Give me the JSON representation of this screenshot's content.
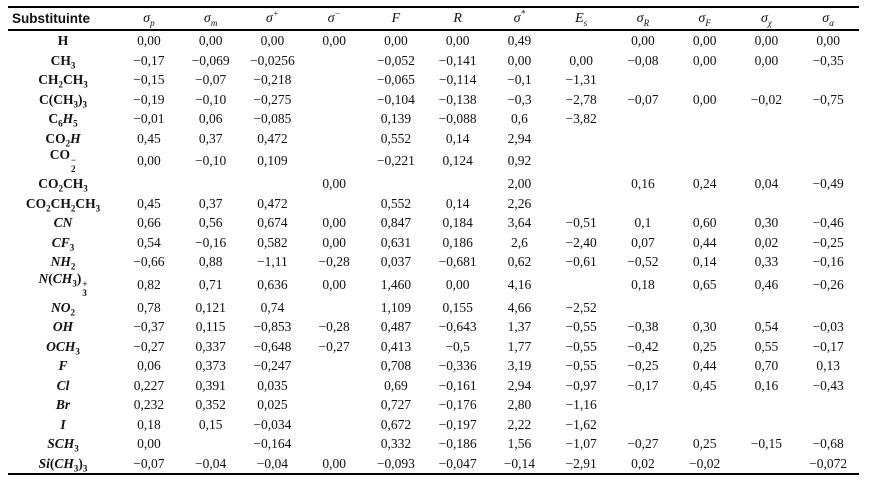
{
  "table": {
    "header": [
      {
        "key": "substituent",
        "runs": [
          {
            "t": "Substituinte"
          }
        ]
      },
      {
        "key": "sigma-p",
        "runs": [
          {
            "i": "σ"
          },
          {
            "sub": "p"
          }
        ]
      },
      {
        "key": "sigma-m",
        "runs": [
          {
            "i": "σ"
          },
          {
            "sub": "m"
          }
        ]
      },
      {
        "key": "sigma-plus",
        "runs": [
          {
            "i": "σ"
          },
          {
            "sup": "+"
          }
        ]
      },
      {
        "key": "sigma-minus",
        "runs": [
          {
            "i": "σ"
          },
          {
            "sup": "−"
          }
        ]
      },
      {
        "key": "F",
        "runs": [
          {
            "i": "F"
          }
        ]
      },
      {
        "key": "R",
        "runs": [
          {
            "i": "R"
          }
        ]
      },
      {
        "key": "sigma-star",
        "runs": [
          {
            "i": "σ"
          },
          {
            "sup": "*"
          }
        ]
      },
      {
        "key": "Es",
        "runs": [
          {
            "i": "E"
          },
          {
            "sub": "s"
          }
        ]
      },
      {
        "key": "sigma-R",
        "runs": [
          {
            "i": "σ"
          },
          {
            "sub": "R"
          }
        ]
      },
      {
        "key": "sigma-F",
        "runs": [
          {
            "i": "σ"
          },
          {
            "sub": "F"
          }
        ]
      },
      {
        "key": "sigma-chi",
        "runs": [
          {
            "i": "σ"
          },
          {
            "sub": "χ"
          }
        ]
      },
      {
        "key": "sigma-alpha",
        "runs": [
          {
            "i": "σ"
          },
          {
            "sub": "α"
          }
        ]
      }
    ],
    "rows": [
      {
        "label": [
          {
            "t": "H"
          }
        ],
        "values": [
          "0,00",
          "0,00",
          "0,00",
          "0,00",
          "0,00",
          "0,00",
          "0,49",
          "",
          "0,00",
          "0,00",
          "0,00",
          "0,00"
        ]
      },
      {
        "label": [
          {
            "t": "CH"
          },
          {
            "sub": "3"
          }
        ],
        "values": [
          "−0,17",
          "−0,069",
          "−0,0256",
          "",
          "−0,052",
          "−0,141",
          "0,00",
          "0,00",
          "−0,08",
          "0,00",
          "0,00",
          "−0,35"
        ]
      },
      {
        "label": [
          {
            "t": "CH"
          },
          {
            "sub": "2"
          },
          {
            "t": "CH"
          },
          {
            "sub": "3"
          }
        ],
        "values": [
          "−0,15",
          "−0,07",
          "−0,218",
          "",
          "−0,065",
          "−0,114",
          "−0,1",
          "−1,31",
          "",
          "",
          "",
          ""
        ]
      },
      {
        "label": [
          {
            "t": "C(CH"
          },
          {
            "sub": "3"
          },
          {
            "t": ")"
          },
          {
            "sub": "3"
          }
        ],
        "values": [
          "−0,19",
          "−0,10",
          "−0,275",
          "",
          "−0,104",
          "−0,138",
          "−0,3",
          "−2,78",
          "−0,07",
          "0,00",
          "−0,02",
          "−0,75"
        ]
      },
      {
        "label": [
          {
            "t": "C"
          },
          {
            "sub": "6"
          },
          {
            "i": "H"
          },
          {
            "sub": "5"
          }
        ],
        "values": [
          "−0,01",
          "0,06",
          "−0,085",
          "",
          "0,139",
          "−0,088",
          "0,6",
          "−3,82",
          "",
          "",
          "",
          ""
        ]
      },
      {
        "label": [
          {
            "t": "CO"
          },
          {
            "sub": "2"
          },
          {
            "i": "H"
          }
        ],
        "values": [
          "0,45",
          "0,37",
          "0,472",
          "",
          "0,552",
          "0,14",
          "2,94",
          "",
          "",
          "",
          "",
          ""
        ]
      },
      {
        "label": [
          {
            "t": "CO"
          },
          {
            "stack": [
              "2",
              "−"
            ]
          }
        ],
        "values": [
          "0,00",
          "−0,10",
          "0,109",
          "",
          "−0,221",
          "0,124",
          "0,92",
          "",
          "",
          "",
          "",
          ""
        ]
      },
      {
        "label": [
          {
            "t": "CO"
          },
          {
            "sub": "2"
          },
          {
            "t": "CH"
          },
          {
            "sub": "3"
          }
        ],
        "values": [
          "",
          "",
          "",
          "0,00",
          "",
          "",
          "2,00",
          "",
          "0,16",
          "0,24",
          "0,04",
          "−0,49"
        ]
      },
      {
        "label": [
          {
            "t": "CO"
          },
          {
            "sub": "2"
          },
          {
            "t": "CH"
          },
          {
            "sub": "2"
          },
          {
            "t": "CH"
          },
          {
            "sub": "3"
          }
        ],
        "values": [
          "0,45",
          "0,37",
          "0,472",
          "",
          "0,552",
          "0,14",
          "2,26",
          "",
          "",
          "",
          "",
          ""
        ]
      },
      {
        "label": [
          {
            "i": "CN"
          }
        ],
        "values": [
          "0,66",
          "0,56",
          "0,674",
          "0,00",
          "0,847",
          "0,184",
          "3,64",
          "−0,51",
          "0,1",
          "0,60",
          "0,30",
          "−0,46"
        ]
      },
      {
        "label": [
          {
            "i": "CF"
          },
          {
            "sub": "3"
          }
        ],
        "values": [
          "0,54",
          "−0,16",
          "0,582",
          "0,00",
          "0,631",
          "0,186",
          "2,6",
          "−2,40",
          "0,07",
          "0,44",
          "0,02",
          "−0,25"
        ]
      },
      {
        "label": [
          {
            "i": "NH"
          },
          {
            "sub": "2"
          }
        ],
        "values": [
          "−0,66",
          "0,88",
          "−1,11",
          "−0,28",
          "0,037",
          "−0,681",
          "0,62",
          "−0,61",
          "−0,52",
          "0,14",
          "0,33",
          "−0,16"
        ]
      },
      {
        "label": [
          {
            "i": "N"
          },
          {
            "t": "("
          },
          {
            "i": "CH"
          },
          {
            "sub": "3"
          },
          {
            "t": ")"
          },
          {
            "stack": [
              "3",
              "+"
            ]
          }
        ],
        "values": [
          "0,82",
          "0,71",
          "0,636",
          "0,00",
          "1,460",
          "0,00",
          "4,16",
          "",
          "0,18",
          "0,65",
          "0,46",
          "−0,26"
        ]
      },
      {
        "label": [
          {
            "i": "NO"
          },
          {
            "sub": "2"
          }
        ],
        "values": [
          "0,78",
          "0,121",
          "0,74",
          "",
          "1,109",
          "0,155",
          "4,66",
          "−2,52",
          "",
          "",
          "",
          ""
        ]
      },
      {
        "label": [
          {
            "i": "OH"
          }
        ],
        "values": [
          "−0,37",
          "0,115",
          "−0,853",
          "−0,28",
          "0,487",
          "−0,643",
          "1,37",
          "−0,55",
          "−0,38",
          "0,30",
          "0,54",
          "−0,03"
        ]
      },
      {
        "label": [
          {
            "i": "OCH"
          },
          {
            "sub": "3"
          }
        ],
        "values": [
          "−0,27",
          "0,337",
          "−0,648",
          "−0,27",
          "0,413",
          "−0,5",
          "1,77",
          "−0,55",
          "−0,42",
          "0,25",
          "0,55",
          "−0,17"
        ]
      },
      {
        "label": [
          {
            "i": "F"
          }
        ],
        "values": [
          "0,06",
          "0,373",
          "−0,247",
          "",
          "0,708",
          "−0,336",
          "3,19",
          "−0,55",
          "−0,25",
          "0,44",
          "0,70",
          "0,13"
        ]
      },
      {
        "label": [
          {
            "i": "Cl"
          }
        ],
        "values": [
          "0,227",
          "0,391",
          "0,035",
          "",
          "0,69",
          "−0,161",
          "2,94",
          "−0,97",
          "−0,17",
          "0,45",
          "0,16",
          "−0,43"
        ]
      },
      {
        "label": [
          {
            "i": "Br"
          }
        ],
        "values": [
          "0,232",
          "0,352",
          "0,025",
          "",
          "0,727",
          "−0,176",
          "2,80",
          "−1,16",
          "",
          "",
          "",
          ""
        ]
      },
      {
        "label": [
          {
            "i": "I"
          }
        ],
        "values": [
          "0,18",
          "0,15",
          "−0,034",
          "",
          "0,672",
          "−0,197",
          "2,22",
          "−1,62",
          "",
          "",
          "",
          ""
        ]
      },
      {
        "label": [
          {
            "i": "SCH"
          },
          {
            "sub": "3"
          }
        ],
        "values": [
          "0,00",
          "",
          "−0,164",
          "",
          "0,332",
          "−0,186",
          "1,56",
          "−1,07",
          "−0,27",
          "0,25",
          "−0,15",
          "−0,68"
        ]
      },
      {
        "label": [
          {
            "i": "Si"
          },
          {
            "t": "("
          },
          {
            "i": "CH"
          },
          {
            "sub": "3"
          },
          {
            "t": ")"
          },
          {
            "sub": "3"
          }
        ],
        "values": [
          "−0,07",
          "−0,04",
          "−0,04",
          "0,00",
          "−0,093",
          "−0,047",
          "−0,14",
          "−2,91",
          "0,02",
          "−0,02",
          "",
          "−0,072"
        ]
      }
    ]
  }
}
